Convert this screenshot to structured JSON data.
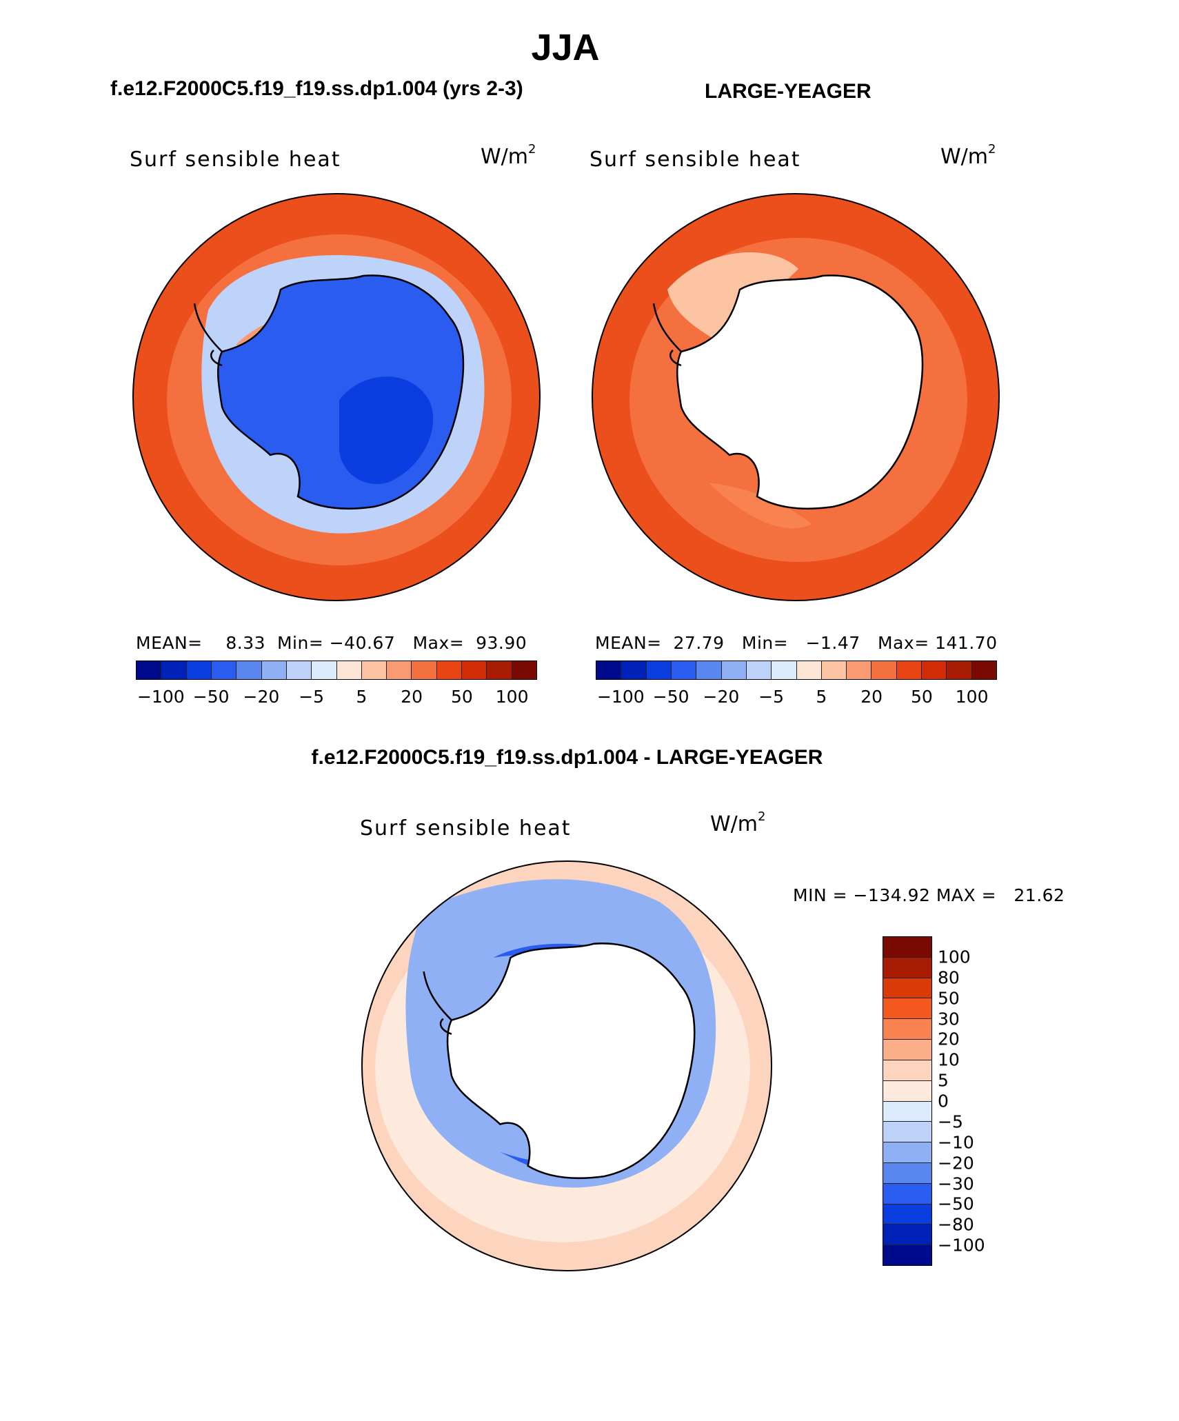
{
  "season": "JJA",
  "panels": {
    "model": {
      "case_title": "f.e12.F2000C5.f19_f19.ss.dp1.004 (yrs 2-3)",
      "variable": "Surf sensible heat",
      "units": "W/m",
      "units_exp": "2",
      "stats": "MEAN=    8.33  Min= −40.67   Max=  93.90"
    },
    "obs": {
      "case_title": "LARGE-YEAGER",
      "variable": "Surf sensible heat",
      "units": "W/m",
      "units_exp": "2",
      "stats": "MEAN=  27.79   Min=   −1.47   Max= 141.70"
    },
    "diff": {
      "case_title": "f.e12.F2000C5.f19_f19.ss.dp1.004 - LARGE-YEAGER",
      "variable": "Surf sensible heat",
      "units": "W/m",
      "units_exp": "2",
      "stats": "MIN = −134.92 MAX =   21.62"
    }
  },
  "colorbar_top": {
    "colors": [
      "#000a8c",
      "#0021b8",
      "#0b3ee0",
      "#2b5cf0",
      "#5a86f0",
      "#8fb0f5",
      "#bdd3fa",
      "#dcebfc",
      "#fde6d6",
      "#fcc4a3",
      "#f99b72",
      "#f5703f",
      "#ea4314",
      "#d12c05",
      "#a81c03",
      "#7a0a02"
    ],
    "labels": [
      "−100",
      "−50",
      "−20",
      "−5",
      "5",
      "20",
      "50",
      "100"
    ]
  },
  "colorbar_diff": {
    "colors": [
      "#7a0a02",
      "#a81c03",
      "#d93a08",
      "#f5581f",
      "#f98350",
      "#fbaf88",
      "#fdd4bd",
      "#fdeadc",
      "#dcebfc",
      "#bdd3fa",
      "#8fb0f5",
      "#5a86f0",
      "#2b5cf0",
      "#0b3ee0",
      "#0021b8",
      "#000a8c"
    ],
    "labels": [
      "100",
      "80",
      "50",
      "30",
      "20",
      "10",
      "5",
      "0",
      "−5",
      "−10",
      "−20",
      "−30",
      "−50",
      "−80",
      "−100"
    ]
  },
  "fields": {
    "model": {
      "ocean_outer": "#ea4f1c",
      "ocean_mid": "#f5703f",
      "ice_zone": "#bdd3fa",
      "ice_edge": "#f99b72",
      "continent": "#2b5cf0",
      "continent_core": "#0b3ee0"
    },
    "obs": {
      "ocean_outer": "#ea4f1c",
      "ocean_mid": "#f5703f",
      "ice_zone": "#fcc4a3",
      "ice_edge": "#f98350",
      "continent": "#ffffff",
      "continent_core": "#ffffff"
    },
    "diff": {
      "ocean_outer": "#fdd4bd",
      "ocean_mid": "#fdeadc",
      "ice_zone": "#8fb0f5",
      "ice_edge": "#2b5cf0",
      "continent": "#ffffff",
      "continent_core": "#ffffff"
    }
  }
}
